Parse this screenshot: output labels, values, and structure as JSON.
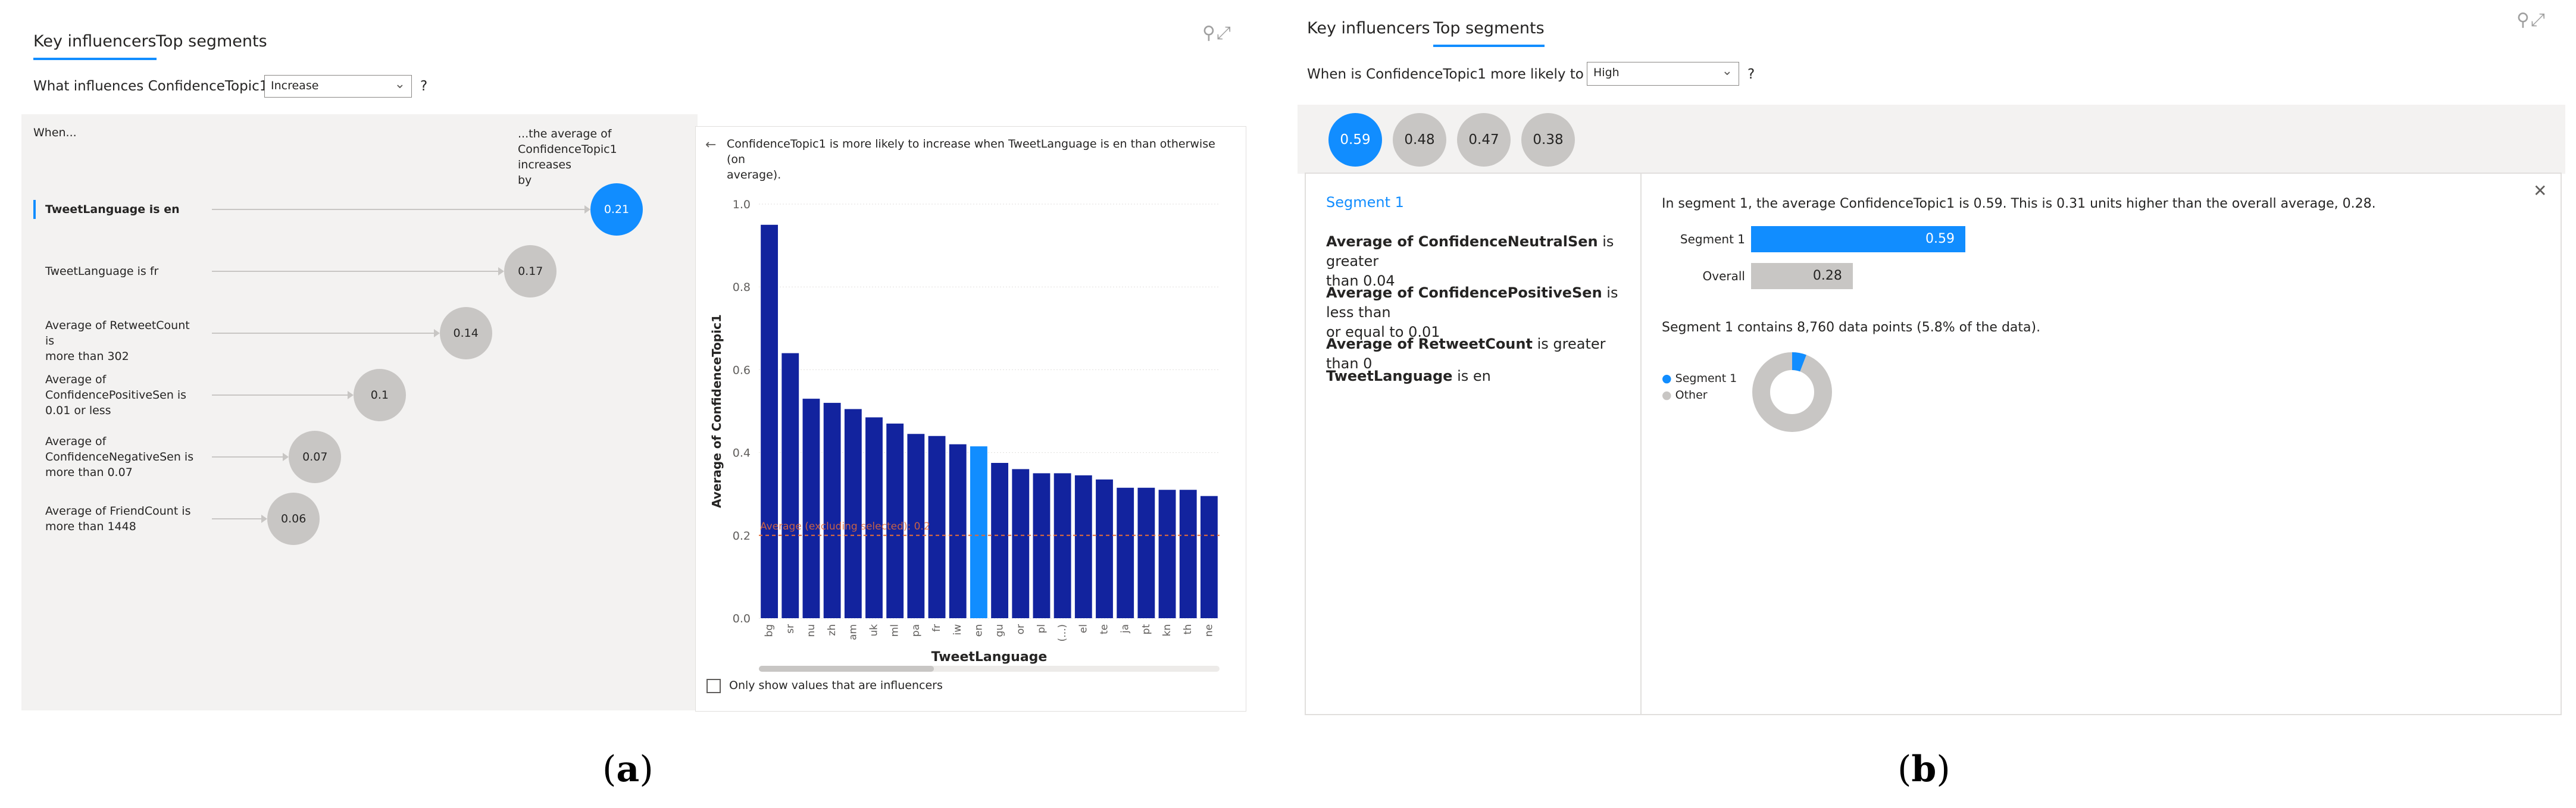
{
  "panel_a": {
    "tabs": [
      "Key influencers",
      "Top segments"
    ],
    "question": "What influences ConfidenceTopic1 to",
    "dropdown_value": "Increase",
    "help": "?",
    "when_label": "When...",
    "avg_label_lines": [
      "...the average of",
      "ConfidenceTopic1 increases",
      "by"
    ],
    "factors": [
      {
        "lines": [
          "TweetLanguage is en"
        ],
        "value": "0.21",
        "selected": true
      },
      {
        "lines": [
          "TweetLanguage is fr"
        ],
        "value": "0.17",
        "selected": false
      },
      {
        "lines": [
          "Average of RetweetCount is",
          "more than 302"
        ],
        "value": "0.14",
        "selected": false
      },
      {
        "lines": [
          "Average of",
          "ConfidencePositiveSen is",
          "0.01 or less"
        ],
        "value": "0.1",
        "selected": false
      },
      {
        "lines": [
          "Average of",
          "ConfidenceNegativeSen is",
          "more than 0.07"
        ],
        "value": "0.07",
        "selected": false
      },
      {
        "lines": [
          "Average of FriendCount is",
          "more than 1448"
        ],
        "value": "0.06",
        "selected": false
      }
    ],
    "back_arrow": "←",
    "detail_text_lines": [
      "ConfidenceTopic1 is more likely to increase when TweetLanguage is en than otherwise (on",
      "average)."
    ],
    "checkbox_label": "Only show values that are influencers",
    "checkbox_checked": false,
    "colors": {
      "accent": "#118dff",
      "bar": "#12239e",
      "bar_selected": "#118dff",
      "bubble": "#c8c6c4",
      "avg_line": "#e66c37"
    }
  },
  "chart_data": {
    "type": "bar",
    "xlabel": "TweetLanguage",
    "ylabel": "Average of ConfidenceTopic1",
    "ylim": [
      0,
      1.0
    ],
    "yticks": [
      "0.0",
      "0.2",
      "0.4",
      "0.6",
      "0.8",
      "1.0"
    ],
    "categories": [
      "bg",
      "sr",
      "nu",
      "zh",
      "am",
      "uk",
      "ml",
      "pa",
      "fr",
      "iw",
      "en",
      "gu",
      "or",
      "pl",
      "(...)",
      "el",
      "te",
      "ja",
      "pt",
      "kn",
      "th",
      "ne"
    ],
    "values": [
      0.95,
      0.64,
      0.53,
      0.52,
      0.505,
      0.485,
      0.47,
      0.445,
      0.44,
      0.42,
      0.415,
      0.375,
      0.36,
      0.35,
      0.35,
      0.345,
      0.335,
      0.315,
      0.315,
      0.31,
      0.31,
      0.295
    ],
    "highlighted_category": "en",
    "reference_line": {
      "value": 0.2,
      "label": "Average (excluding selected): 0.2"
    },
    "grid": true
  },
  "panel_b": {
    "tabs": [
      "Key influencers",
      "Top segments"
    ],
    "question": "When is ConfidenceTopic1 more likely to be",
    "dropdown_value": "High",
    "help": "?",
    "segments": [
      {
        "value": "0.59",
        "selected": true
      },
      {
        "value": "0.48",
        "selected": false
      },
      {
        "value": "0.47",
        "selected": false
      },
      {
        "value": "0.38",
        "selected": false
      }
    ],
    "segment_title": "Segment 1",
    "conditions": [
      {
        "bold": "Average of ConfidenceNeutralSen",
        "rest_lines": [
          "is greater",
          "than 0.04"
        ]
      },
      {
        "bold": "Average of ConfidencePositiveSen",
        "rest_lines": [
          "is less than",
          "or equal to 0.01"
        ]
      },
      {
        "bold": "Average of RetweetCount",
        "rest_lines": [
          "is greater than 0"
        ]
      },
      {
        "bold": "TweetLanguage",
        "rest_lines": [
          "is en"
        ]
      }
    ],
    "close_icon": "✕",
    "summary": "In segment 1, the average ConfidenceTopic1 is 0.59. This is 0.31 units higher than the overall average, 0.28.",
    "compare": {
      "segment_label": "Segment 1",
      "segment_value": "0.59",
      "segment_fraction": 0.59,
      "overall_label": "Overall",
      "overall_value": "0.28",
      "overall_fraction": 0.28
    },
    "datapoints_text": "Segment 1 contains 8,760 data points (5.8% of the data).",
    "donut": {
      "segment_share": 0.058,
      "legend": [
        "Segment 1",
        "Other"
      ]
    }
  },
  "captions": {
    "a": "(a)",
    "b": "(b)"
  }
}
